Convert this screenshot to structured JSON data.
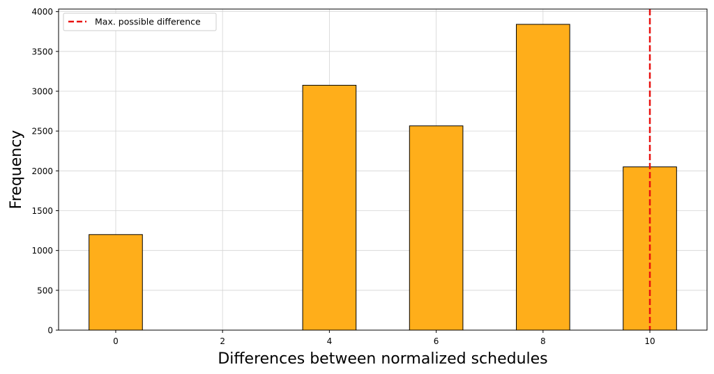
{
  "chart_data": {
    "type": "bar",
    "x": [
      0,
      4,
      6,
      8,
      10
    ],
    "values": [
      1200,
      3075,
      2565,
      3840,
      2050
    ],
    "bar_width": 1,
    "xlabel": "Differences between normalized schedules",
    "ylabel": "Frequency",
    "xticks": [
      0,
      2,
      4,
      6,
      8,
      10
    ],
    "yticks": [
      0,
      500,
      1000,
      1500,
      2000,
      2500,
      3000,
      3500,
      4000
    ],
    "xlim": [
      -1.07,
      11.07
    ],
    "ylim": [
      0,
      4032
    ],
    "grid": true,
    "legend_position": "upper-left",
    "colors": {
      "bar_fill": "#FFAE1A",
      "bar_edge": "#000000",
      "reference_line": "#E8110F",
      "grid": "#d3d3d3"
    },
    "reference_line": {
      "x": 10,
      "label": "Max. possible difference",
      "style": "dashed"
    }
  }
}
